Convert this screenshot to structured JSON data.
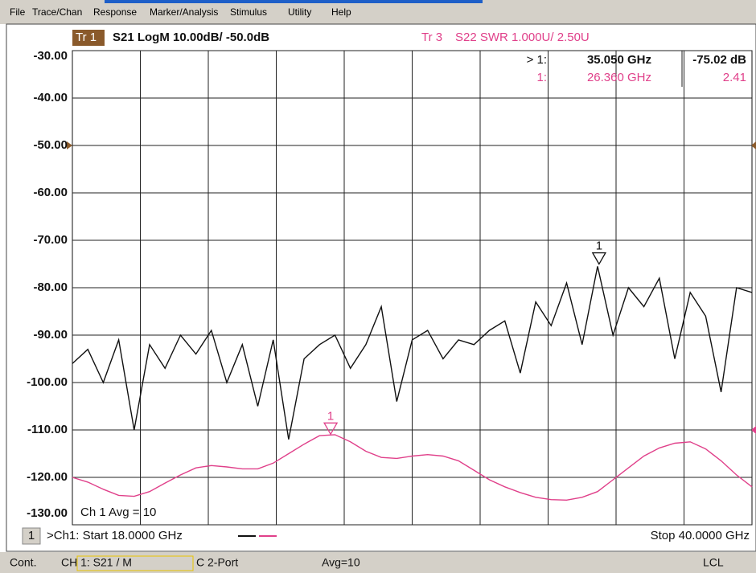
{
  "menu": [
    "File",
    "Trace/Chan",
    "Response",
    "Marker/Analysis",
    "Stimulus",
    "Utility",
    "Help"
  ],
  "chart_data": {
    "type": "line",
    "traces": [
      {
        "id": "Tr 1",
        "text": "S21 LogM 10.00dB/ -50.0dB",
        "color": "#111111"
      },
      {
        "id": "Tr 3",
        "text": "S22 SWR 1.000U/ 2.50U",
        "color": "#e0408a"
      }
    ],
    "x": [
      18,
      18.5,
      19,
      19.5,
      20,
      20.5,
      21,
      21.5,
      22,
      22.5,
      23,
      23.5,
      24,
      24.5,
      25,
      25.5,
      26,
      26.5,
      27,
      27.5,
      28,
      28.5,
      29,
      29.5,
      30,
      30.5,
      31,
      31.5,
      32,
      32.5,
      33,
      33.5,
      34,
      34.5,
      35,
      35.5,
      36,
      36.5,
      37,
      37.5,
      38,
      38.5,
      39,
      39.5,
      40
    ],
    "xlim": [
      18,
      40
    ],
    "ylim": [
      -130,
      -30
    ],
    "yticks": [
      {
        "value": -30,
        "label": "-30.00"
      },
      {
        "value": -40,
        "label": "-40.00"
      },
      {
        "value": -50,
        "label": "-50.00"
      },
      {
        "value": -60,
        "label": "-60.00"
      },
      {
        "value": -70,
        "label": "-70.00"
      },
      {
        "value": -80,
        "label": "-80.00"
      },
      {
        "value": -90,
        "label": "-90.00"
      },
      {
        "value": -100,
        "label": "-100.00"
      },
      {
        "value": -110,
        "label": "-110.00"
      },
      {
        "value": -120,
        "label": "-120.00"
      },
      {
        "value": -130,
        "label": "-130.00"
      }
    ],
    "y2lim": [
      0.5,
      10.5
    ],
    "grid": true,
    "series": [
      {
        "color": "#111111",
        "values": [
          -96,
          -93,
          -100,
          -91,
          -110,
          -92,
          -97,
          -90,
          -94,
          -89,
          -100,
          -92,
          -105,
          -91,
          -112,
          -95,
          -92,
          -90,
          -97,
          -92,
          -84,
          -104,
          -91,
          -89,
          -95,
          -91,
          -92,
          -89,
          -87,
          -98,
          -83,
          -88,
          -79,
          -92,
          -75.5,
          -90,
          -80,
          -84,
          -78,
          -95,
          -81,
          -86,
          -102,
          -80,
          -81
        ]
      },
      {
        "color": "#e0408a",
        "axis": "y2",
        "values": [
          1.5,
          1.4,
          1.25,
          1.12,
          1.1,
          1.2,
          1.38,
          1.55,
          1.7,
          1.75,
          1.72,
          1.68,
          1.68,
          1.8,
          2.0,
          2.2,
          2.38,
          2.4,
          2.25,
          2.05,
          1.92,
          1.9,
          1.95,
          1.98,
          1.95,
          1.85,
          1.65,
          1.45,
          1.3,
          1.18,
          1.08,
          1.03,
          1.02,
          1.08,
          1.2,
          1.45,
          1.7,
          1.95,
          2.12,
          2.22,
          2.25,
          2.1,
          1.85,
          1.55,
          1.3
        ]
      }
    ],
    "markers": [
      {
        "label": "1",
        "prefix": "> 1:",
        "series": 0,
        "x": 35.05,
        "x_label": "35.050 GHz",
        "value": -75.02,
        "value_label": "-75.02 dB"
      },
      {
        "label": "1",
        "prefix": "1:",
        "series": 1,
        "x": 26.36,
        "x_label": "26.360 GHz",
        "value": 2.41,
        "value_label": "2.41"
      }
    ],
    "average": "Ch 1 Avg =   10",
    "channel": "1",
    "start": ">Ch1: Start 18.0000 GHz",
    "stop": "Stop 40.0000 GHz"
  },
  "status_bar": [
    "Cont.",
    "CH 1: S21 / M",
    "C 2-Port",
    "Avg=10",
    "LCL"
  ]
}
